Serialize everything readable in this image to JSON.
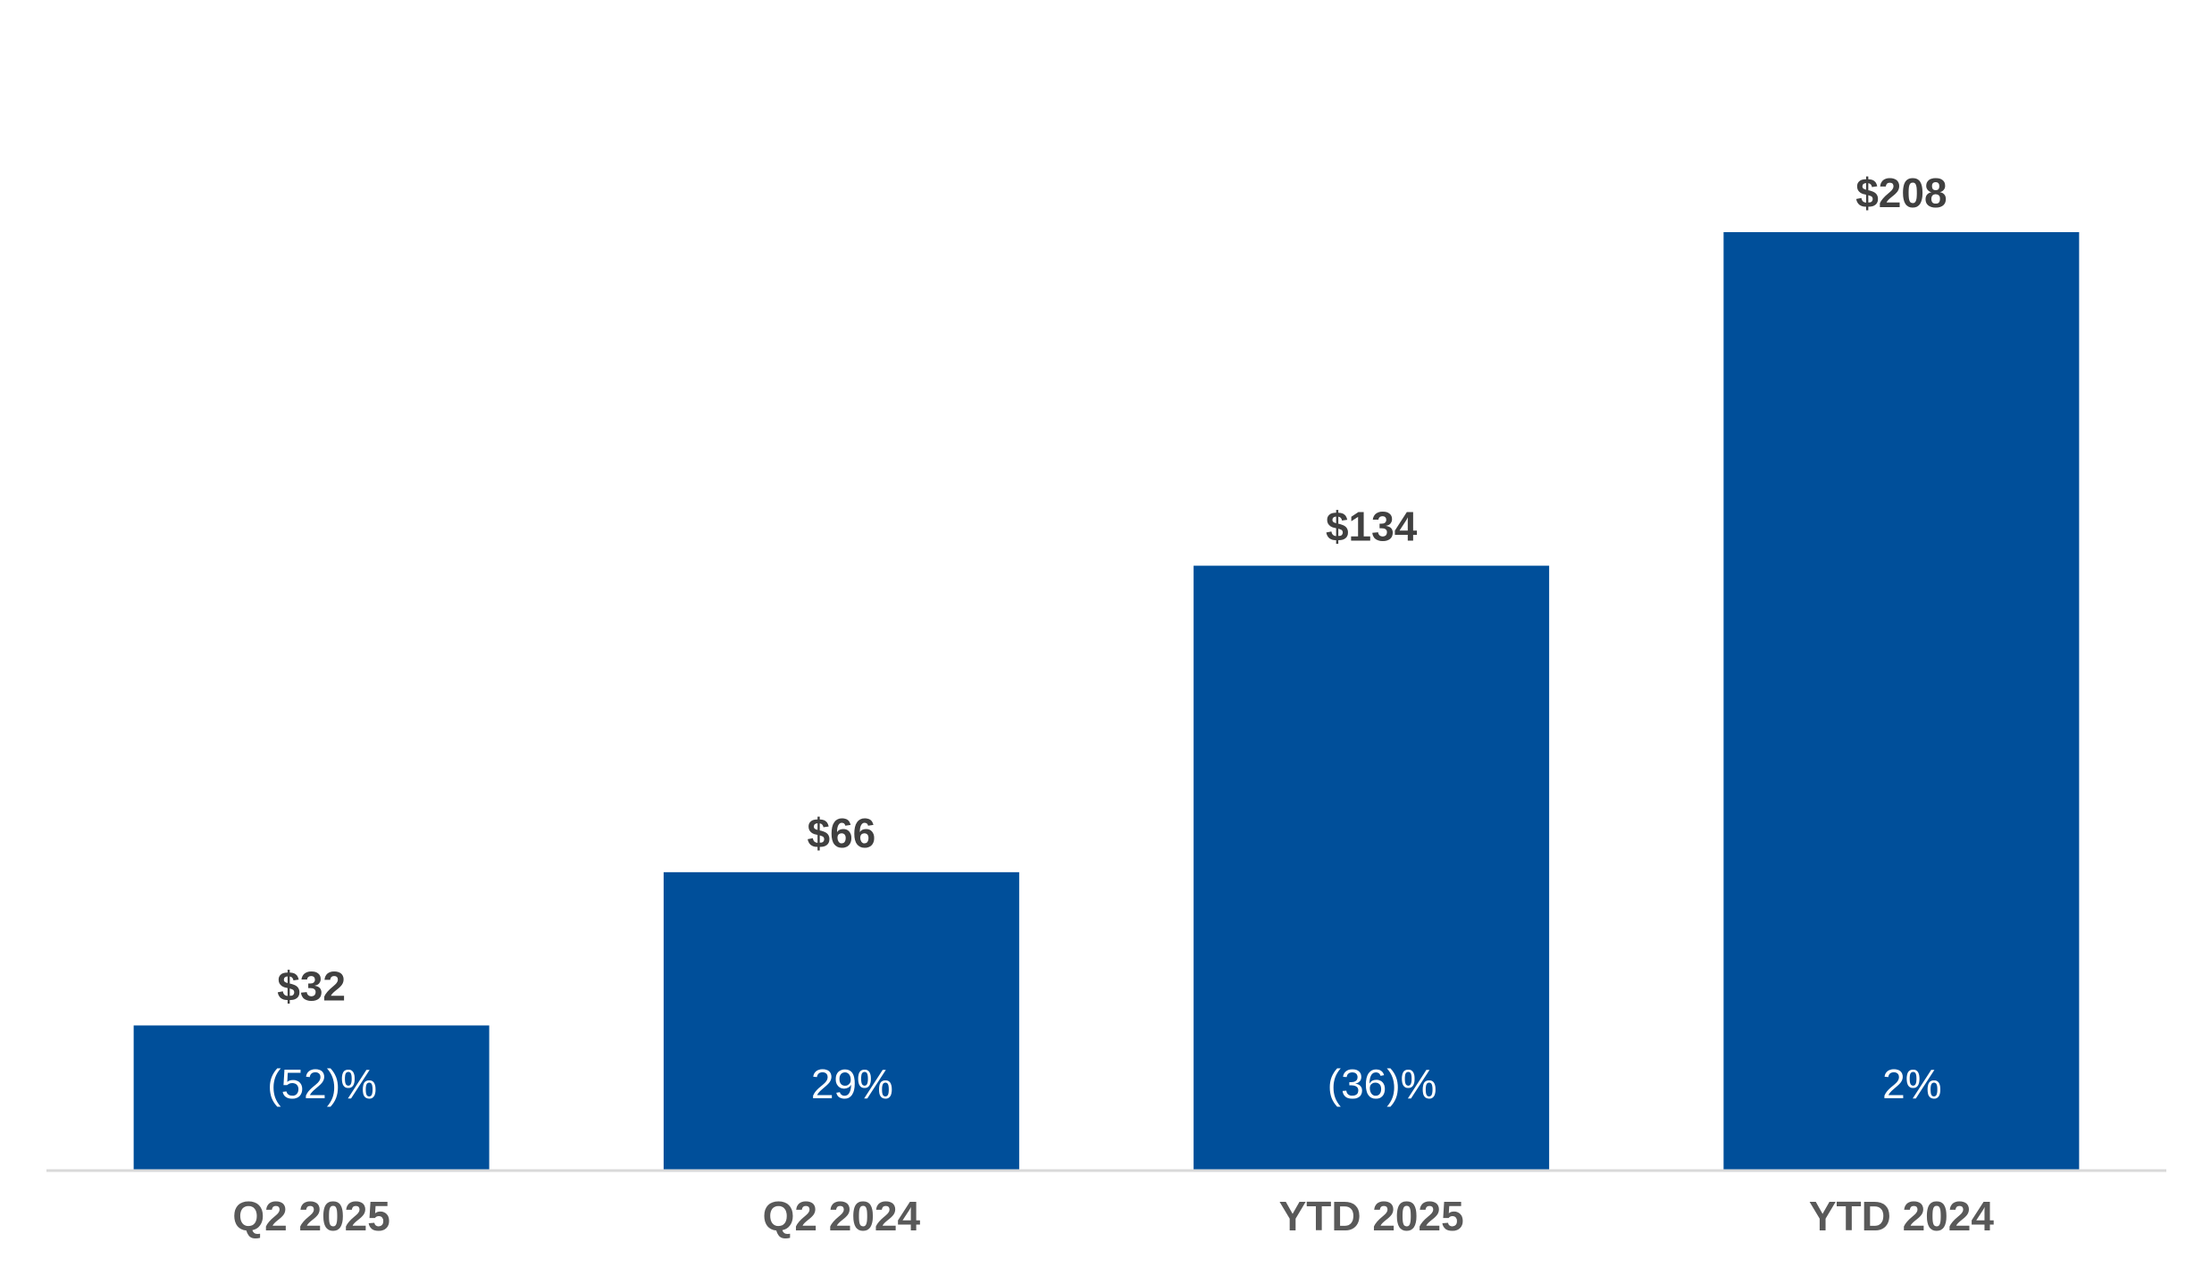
{
  "chart_data": {
    "type": "bar",
    "categories": [
      "Q2 2025",
      "Q2 2024",
      "YTD 2025",
      "YTD 2024"
    ],
    "values": [
      32,
      66,
      134,
      208
    ],
    "value_labels": [
      "$32",
      "$66",
      "$134",
      "$208"
    ],
    "change_labels": [
      "(52)%",
      "29%",
      "(36)%",
      "2%"
    ],
    "ylim": [
      0,
      230
    ],
    "grid": false,
    "legend": "none",
    "colors": {
      "bar": "#004F9A",
      "value_label": "#404040",
      "tick_label": "#595959",
      "change_label": "#FFFFFF",
      "axis": "#D9D9D9"
    }
  }
}
